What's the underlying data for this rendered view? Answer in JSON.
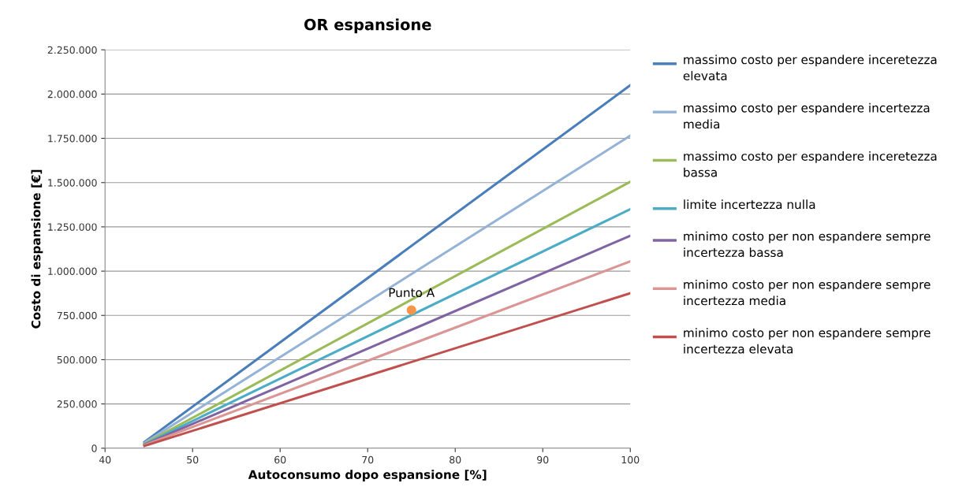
{
  "chart_data": {
    "type": "line",
    "title": "OR espansione",
    "xlabel": "Autoconsumo dopo espansione [%]",
    "ylabel": "Costo di espansione [€]",
    "x": [
      44.5,
      100
    ],
    "series": [
      {
        "name": "massimo costo per espandere inceretezza elevata",
        "color": "#4a7ebb",
        "values": [
          35000,
          2050000
        ]
      },
      {
        "name": "massimo costo per espandere incertezza media",
        "color": "#95b3d7",
        "values": [
          30000,
          1765000
        ]
      },
      {
        "name": "massimo costo per espandere inceretezza bassa",
        "color": "#9bbb59",
        "values": [
          25000,
          1505000
        ]
      },
      {
        "name": "limite incertezza nulla",
        "color": "#4bacc6",
        "values": [
          22000,
          1350000
        ]
      },
      {
        "name": "minimo costo per non espandere sempre incertezza bassa",
        "color": "#8064a2",
        "values": [
          20000,
          1200000
        ]
      },
      {
        "name": "minimo costo per non espandere sempre incertezza media",
        "color": "#d99694",
        "values": [
          17000,
          1055000
        ]
      },
      {
        "name": "minimo costo per non espandere sempre incertezza elevata",
        "color": "#c0504d",
        "values": [
          13000,
          875000
        ]
      },
      {
        "type": "scatter",
        "x": [
          75
        ],
        "color": "#f79646",
        "values": [
          780000
        ],
        "marker": "circle"
      }
    ],
    "annotations": [
      {
        "text": "Punto A",
        "x": 75,
        "y": 780000
      }
    ],
    "xlim": [
      40,
      100
    ],
    "xticks": [
      40,
      50,
      60,
      70,
      80,
      90,
      100
    ],
    "ylim": [
      0,
      2250000
    ],
    "yticks": [
      0,
      {
        "value": 250000,
        "label": "250.000"
      },
      {
        "value": 500000,
        "label": "500.000"
      },
      {
        "value": 750000,
        "label": "750.000"
      },
      {
        "value": 1000000,
        "label": "1.000.000"
      },
      {
        "value": 1250000,
        "label": "1.250.000"
      },
      {
        "value": 1500000,
        "label": "1.500.000"
      },
      {
        "value": 1750000,
        "label": "1.750.000"
      },
      {
        "value": 2000000,
        "label": "2.000.000"
      },
      {
        "value": 2250000,
        "label": "2.250.000"
      }
    ],
    "grid": "y",
    "legend": "right"
  }
}
